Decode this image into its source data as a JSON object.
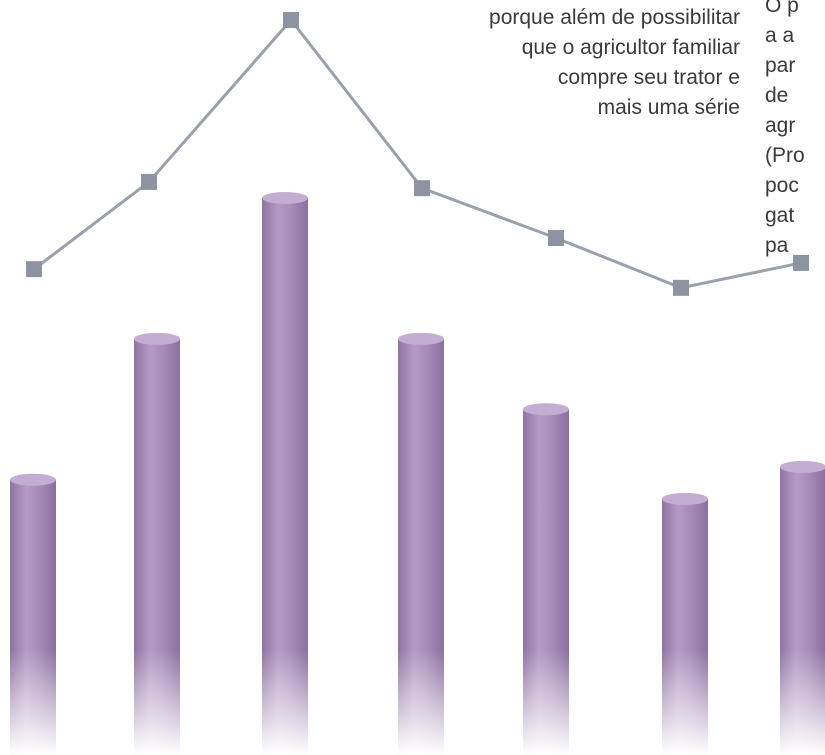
{
  "chart_data": {
    "type": "bar",
    "bars": {
      "values": [
        43,
        65,
        87,
        65,
        54,
        40,
        45
      ],
      "color": "#a287b4",
      "ylim": [
        0,
        100
      ]
    },
    "line": {
      "values": [
        78,
        92,
        118,
        91,
        83,
        75,
        79
      ],
      "color": "#9aa0ac",
      "marker_color": "#8e93a2",
      "ylim": [
        0,
        120
      ]
    },
    "grid": false,
    "legend": false
  },
  "text_left": [
    "porque além de possibilitar",
    "que o agricultor familiar",
    "compre seu trator e",
    "mais uma série"
  ],
  "text_right": [
    "O p",
    "a a",
    "par",
    "de",
    "agr",
    "(Pro",
    "poc",
    "gat",
    "pa"
  ]
}
